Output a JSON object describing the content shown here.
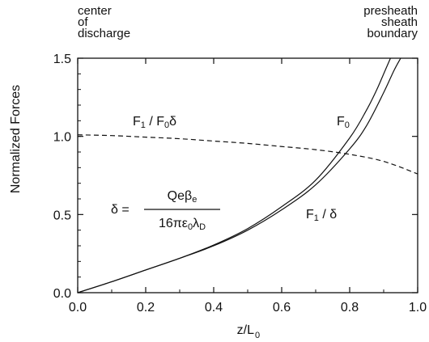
{
  "chart_data": {
    "type": "line",
    "xlabel": "z/L",
    "xlabel_sub": "0",
    "ylabel": "Normalized Forces",
    "xlim": [
      0.0,
      1.0
    ],
    "ylim": [
      0.0,
      1.5
    ],
    "x_ticks": [
      "0.0",
      "0.2",
      "0.4",
      "0.6",
      "0.8",
      "1.0"
    ],
    "y_ticks": [
      "0.0",
      "0.5",
      "1.0",
      "1.5"
    ],
    "grid": false,
    "legend": "none",
    "corner_notes": {
      "left": [
        "center",
        "of",
        "discharge"
      ],
      "right": [
        "presheath",
        "sheath",
        "boundary"
      ]
    },
    "series": [
      {
        "key": "f0",
        "style": "solid",
        "x": [
          0.0,
          0.1,
          0.2,
          0.3,
          0.4,
          0.5,
          0.6,
          0.7,
          0.8,
          0.85,
          0.88,
          0.9,
          0.92
        ],
        "y": [
          0.0,
          0.07,
          0.145,
          0.22,
          0.305,
          0.41,
          0.55,
          0.72,
          0.99,
          1.17,
          1.3,
          1.4,
          1.5
        ]
      },
      {
        "key": "f1_over_delta",
        "style": "solid",
        "x": [
          0.0,
          0.1,
          0.2,
          0.3,
          0.4,
          0.5,
          0.6,
          0.7,
          0.8,
          0.85,
          0.9,
          0.93,
          0.95
        ],
        "y": [
          0.0,
          0.07,
          0.145,
          0.22,
          0.3,
          0.4,
          0.53,
          0.69,
          0.92,
          1.07,
          1.28,
          1.42,
          1.5
        ]
      },
      {
        "key": "f1_over_f0delta",
        "style": "dashed",
        "x": [
          0.0,
          0.1,
          0.2,
          0.3,
          0.4,
          0.5,
          0.6,
          0.7,
          0.8,
          0.9,
          1.0
        ],
        "y": [
          1.01,
          1.005,
          0.995,
          0.985,
          0.97,
          0.955,
          0.935,
          0.915,
          0.885,
          0.84,
          0.76
        ]
      }
    ],
    "annotations": {
      "f0": {
        "text": "F",
        "sub": "0"
      },
      "f1_over_f0delta": {
        "parts": [
          [
            "F",
            ""
          ],
          [
            "1",
            "sub"
          ],
          [
            " / F",
            ""
          ],
          [
            "0",
            "sub"
          ],
          [
            "δ",
            ""
          ]
        ]
      },
      "f1_over_delta": {
        "parts": [
          [
            "F",
            ""
          ],
          [
            "1",
            "sub"
          ],
          [
            " / δ",
            ""
          ]
        ]
      },
      "equation": {
        "lhs": "δ =",
        "numerator": [
          [
            "Qeβ",
            ""
          ],
          [
            "e",
            "sub"
          ]
        ],
        "denominator": [
          [
            "16πε",
            ""
          ],
          [
            "0",
            "sub"
          ],
          [
            "λ",
            ""
          ],
          [
            "D",
            "sub"
          ]
        ]
      }
    }
  }
}
